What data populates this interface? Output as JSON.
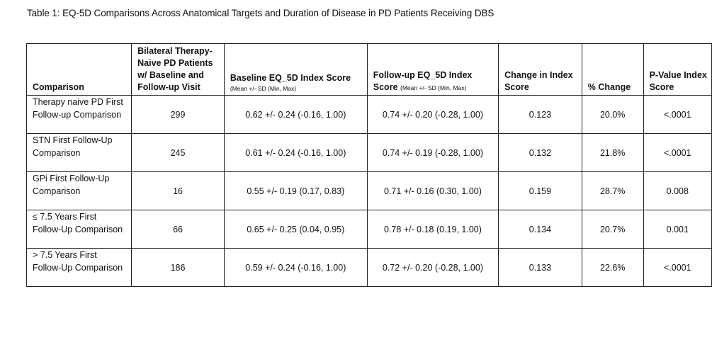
{
  "caption": "Table 1: EQ-5D Comparisons Across Anatomical Targets and Duration of Disease in PD Patients Receiving DBS",
  "headers": {
    "comparison": "Comparison",
    "patients": "Bilateral Therapy-Naive PD Patients w/ Baseline and Follow-up Visit",
    "baseline_main": "Baseline EQ_5D Index Score",
    "baseline_sub": "(Mean +/- SD (Min, Max)",
    "followup_main": "Follow-up EQ_5D Index Score",
    "followup_sub": "(Mean +/- SD (Min, Max)",
    "change": "Change in Index Score",
    "pct_change": "% Change",
    "pvalue": "P-Value Index Score"
  },
  "rows": [
    {
      "comparison": "Therapy naive PD First Follow-up Comparison",
      "patients": "299",
      "baseline": "0.62 +/- 0.24 (-0.16, 1.00)",
      "followup": "0.74 +/- 0.20 (-0.28, 1.00)",
      "change": "0.123",
      "pct": "20.0%",
      "p": "<.0001"
    },
    {
      "comparison": "STN First Follow-Up Comparison",
      "patients": "245",
      "baseline": "0.61 +/- 0.24 (-0.16, 1.00)",
      "followup": "0.74 +/- 0.19 (-0.28, 1.00)",
      "change": "0.132",
      "pct": "21.8%",
      "p": "<.0001"
    },
    {
      "comparison": "GPi First Follow-Up Comparison",
      "patients": "16",
      "baseline": "0.55 +/- 0.19 (0.17, 0.83)",
      "followup": "0.71 +/- 0.16 (0.30, 1.00)",
      "change": "0.159",
      "pct": "28.7%",
      "p": "0.008"
    },
    {
      "comparison": "≤ 7.5 Years First Follow-Up Comparison",
      "patients": "66",
      "baseline": "0.65 +/- 0.25 (0.04, 0.95)",
      "followup": "0.78 +/- 0.18 (0.19, 1.00)",
      "change": "0.134",
      "pct": "20.7%",
      "p": "0.001"
    },
    {
      "comparison": "> 7.5 Years First Follow-Up Comparison",
      "patients": "186",
      "baseline": "0.59 +/- 0.24 (-0.16, 1.00)",
      "followup": "0.72 +/- 0.20 (-0.28, 1.00)",
      "change": "0.133",
      "pct": "22.6%",
      "p": "<.0001"
    }
  ]
}
